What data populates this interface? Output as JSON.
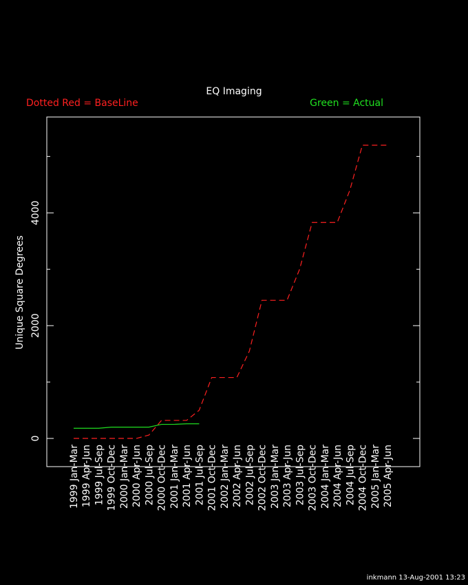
{
  "chart_data": {
    "type": "line",
    "title": "EQ Imaging",
    "y_label": "Unique Square Degrees",
    "annotations": [
      {
        "text": "Dotted Red = BaseLine",
        "color": "#ff2020",
        "corner": "left"
      },
      {
        "text": "Green = Actual",
        "color": "#20e020",
        "corner": "right"
      }
    ],
    "footer": "inkmann 13-Aug-2001 13:23",
    "categories": [
      "1999 Jan-Mar",
      "1999 Apr-Jun",
      "1999 Jul-Sep",
      "1999 Oct-Dec",
      "2000 Jan-Mar",
      "2000 Apr-Jun",
      "2000 Jul-Sep",
      "2000 Oct-Dec",
      "2001 Jan-Mar",
      "2001 Apr-Jun",
      "2001 Jul-Sep",
      "2001 Oct-Dec",
      "2002 Jan-Mar",
      "2002 Apr-Jun",
      "2002 Jul-Sep",
      "2002 Oct-Dec",
      "2003 Jan-Mar",
      "2003 Apr-Jun",
      "2003 Jul-Sep",
      "2003 Oct-Dec",
      "2004 Jan-Mar",
      "2004 Apr-Jun",
      "2004 Jul-Sep",
      "2004 Oct-Dec",
      "2005 Jan-Mar",
      "2005 Apr-Jun"
    ],
    "series": [
      {
        "color": "#ff2020",
        "dashed": true,
        "values": [
          0,
          0,
          0,
          0,
          0,
          0,
          60,
          320,
          320,
          320,
          500,
          1080,
          1080,
          1080,
          1550,
          2450,
          2450,
          2450,
          3000,
          3830,
          3830,
          3830,
          4400,
          5200,
          5200,
          5200
        ]
      },
      {
        "color": "#20e020",
        "dashed": false,
        "values": [
          180,
          180,
          180,
          200,
          200,
          200,
          200,
          250,
          250,
          260,
          260,
          null,
          null,
          null,
          null,
          null,
          null,
          null,
          null,
          null,
          null,
          null,
          null,
          null,
          null,
          null
        ]
      }
    ],
    "ylim": [
      -500,
      5700
    ],
    "yticks": [
      0,
      2000,
      4000
    ],
    "yminor": [
      1000,
      3000,
      5000
    ]
  }
}
